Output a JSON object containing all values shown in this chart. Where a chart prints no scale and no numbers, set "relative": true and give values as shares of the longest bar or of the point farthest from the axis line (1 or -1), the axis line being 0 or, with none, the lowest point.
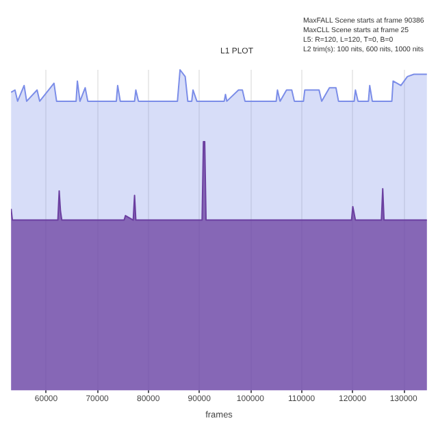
{
  "chart_data": {
    "type": "area",
    "title": "L1 PLOT",
    "xlabel": "frames",
    "relative": true,
    "grid": "x",
    "annotations": [
      "MaxFALL Scene starts at frame 90386",
      "MaxCLL Scene starts at frame 25",
      "L5: R=120, L=120, T=0, B=0",
      "L2 trim(s): 100 nits, 600 nits, 1000 nits"
    ],
    "xlim": [
      53100,
      134600
    ],
    "xticks": [
      60000,
      70000,
      80000,
      90000,
      100000,
      110000,
      120000,
      130000
    ],
    "series": [
      {
        "color": "#7b8de8",
        "x": [
          53130,
          53890,
          54400,
          55680,
          56180,
          58220,
          58730,
          61530,
          62040,
          65860,
          66110,
          66620,
          67640,
          68150,
          73740,
          74000,
          74510,
          77310,
          77560,
          78070,
          85710,
          86220,
          87230,
          87740,
          88510,
          88760,
          89520,
          94870,
          95120,
          95380,
          97670,
          98430,
          98940,
          105050,
          105300,
          105810,
          107080,
          108100,
          108610,
          110390,
          110650,
          112180,
          113450,
          113960,
          115480,
          116760,
          117260,
          120320,
          120570,
          121080,
          123120,
          123370,
          123880,
          127700,
          127950,
          129480,
          130750,
          132030,
          134570
        ],
        "values": [
          0.93,
          0.937,
          0.902,
          0.951,
          0.902,
          0.937,
          0.902,
          0.958,
          0.902,
          0.902,
          0.965,
          0.902,
          0.944,
          0.902,
          0.902,
          0.951,
          0.902,
          0.902,
          0.937,
          0.902,
          0.902,
          1.0,
          0.979,
          0.902,
          0.902,
          0.937,
          0.902,
          0.902,
          0.923,
          0.902,
          0.937,
          0.937,
          0.902,
          0.902,
          0.937,
          0.902,
          0.937,
          0.937,
          0.902,
          0.902,
          0.937,
          0.937,
          0.937,
          0.902,
          0.944,
          0.944,
          0.902,
          0.902,
          0.937,
          0.902,
          0.902,
          0.951,
          0.902,
          0.902,
          0.965,
          0.951,
          0.979,
          0.986,
          0.986
        ]
      },
      {
        "color": "#6b3fa0",
        "x": [
          53130,
          53380,
          62290,
          62550,
          62800,
          63060,
          75270,
          75530,
          77050,
          77310,
          77560,
          90540,
          90800,
          91050,
          91310,
          119810,
          120060,
          120570,
          125660,
          125920,
          126170,
          134570
        ],
        "values": [
          0.566,
          0.531,
          0.531,
          0.622,
          0.559,
          0.531,
          0.531,
          0.545,
          0.531,
          0.608,
          0.531,
          0.531,
          0.776,
          0.776,
          0.531,
          0.531,
          0.573,
          0.531,
          0.531,
          0.629,
          0.531,
          0.531
        ]
      }
    ]
  }
}
